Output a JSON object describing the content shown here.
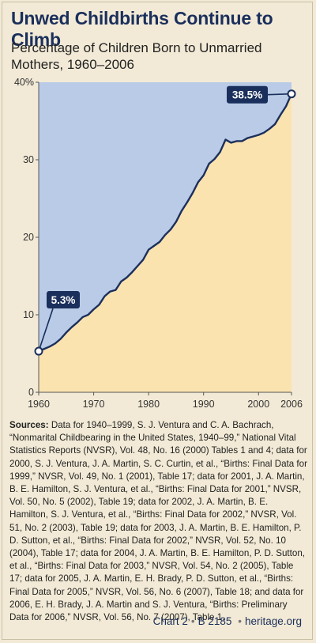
{
  "header": {
    "title": "Unwed Childbirths Continue to Climb",
    "subtitle": "Percentage of Children Born to Unmarried Mothers, 1960–2006"
  },
  "sources": {
    "lead": "Sources:",
    "text": "Data for 1940–1999, S. J. Ventura and C. A. Bachrach, “Nonmarital Childbearing in the United States, 1940–99,” National Vital Statistics Reports (NVSR), Vol. 48, No. 16 (2000) Tables 1 and 4; data for 2000, S. J. Ventura, J. A. Martin, S. C. Curtin, et al., “Births: Final Data for 1999,” NVSR, Vol. 49, No. 1 (2001), Table 17; data for 2001, J. A. Martin, B. E. Hamilton, S. J. Ventura, et al., “Births: Final Data for 2001,” NVSR, Vol. 50, No. 5 (2002), Table 19; data for 2002, J. A. Martin, B. E. Hamilton, S. J. Ventura, et al., “Births: Final Data for 2002,” NVSR, Vol. 51, No. 2 (2003), Table 19; data for 2003, J. A. Martin, B. E. Hamilton, P. D. Sutton, et al., “Births: Final Data for 2002,” NVSR, Vol. 52, No. 10 (2004), Table 17; data for 2004, J. A. Martin, B. E. Hamilton, P. D. Sutton, et al., “Births: Final Data for 2003,” NVSR, Vol. 54, No. 2 (2005), Table 17; data for 2005, J. A. Martin, E. H. Brady, P. D. Sutton, et al., “Births: Final Data for 2005,” NVSR, Vol. 56, No. 6 (2007), Table 18; and data for 2006, E. H. Brady, J. A. Martin and S. J. Ventura, “Births: Preliminary Data for 2006,” NVSR, Vol. 56, No. 7 (2007), Table 1."
  },
  "footer": {
    "chart_ref": "Chart 2",
    "separator": "•",
    "report_id": "B 2185",
    "website": "heritage.org"
  },
  "colors": {
    "background": "#f2ead6",
    "plot_above": "#b9cbe6",
    "plot_area_fill": "#fbe3b0",
    "line": "#1b2f5c",
    "title": "#1b2f5c"
  },
  "chart_data": {
    "type": "area",
    "title": "",
    "xlabel": "",
    "ylabel": "",
    "x": [
      1960,
      1961,
      1962,
      1963,
      1964,
      1965,
      1966,
      1967,
      1968,
      1969,
      1970,
      1971,
      1972,
      1973,
      1974,
      1975,
      1976,
      1977,
      1978,
      1979,
      1980,
      1981,
      1982,
      1983,
      1984,
      1985,
      1986,
      1987,
      1988,
      1989,
      1990,
      1991,
      1992,
      1993,
      1994,
      1995,
      1996,
      1997,
      1998,
      1999,
      2000,
      2001,
      2002,
      2003,
      2004,
      2005,
      2006
    ],
    "series": [
      {
        "values": [
          5.3,
          5.6,
          5.9,
          6.3,
          6.9,
          7.7,
          8.4,
          9.0,
          9.7,
          10.0,
          10.7,
          11.3,
          12.4,
          13.0,
          13.2,
          14.3,
          14.8,
          15.5,
          16.3,
          17.1,
          18.4,
          18.9,
          19.4,
          20.3,
          21.0,
          22.0,
          23.4,
          24.5,
          25.7,
          27.1,
          28.0,
          29.5,
          30.1,
          31.0,
          32.6,
          32.2,
          32.4,
          32.4,
          32.8,
          33.0,
          33.2,
          33.5,
          34.0,
          34.6,
          35.8,
          36.9,
          38.5
        ]
      }
    ],
    "xlim": [
      1960,
      2006
    ],
    "ylim": [
      0,
      40
    ],
    "x_ticks": [
      "1960",
      "1970",
      "1980",
      "1990",
      "2000",
      "2006"
    ],
    "y_ticks": [
      "0",
      "10",
      "20",
      "30",
      "40%"
    ],
    "annotations": [
      {
        "label": "5.3%",
        "x": 1960,
        "y": 5.3
      },
      {
        "label": "38.5%",
        "x": 2006,
        "y": 38.5
      }
    ],
    "grid": false
  }
}
